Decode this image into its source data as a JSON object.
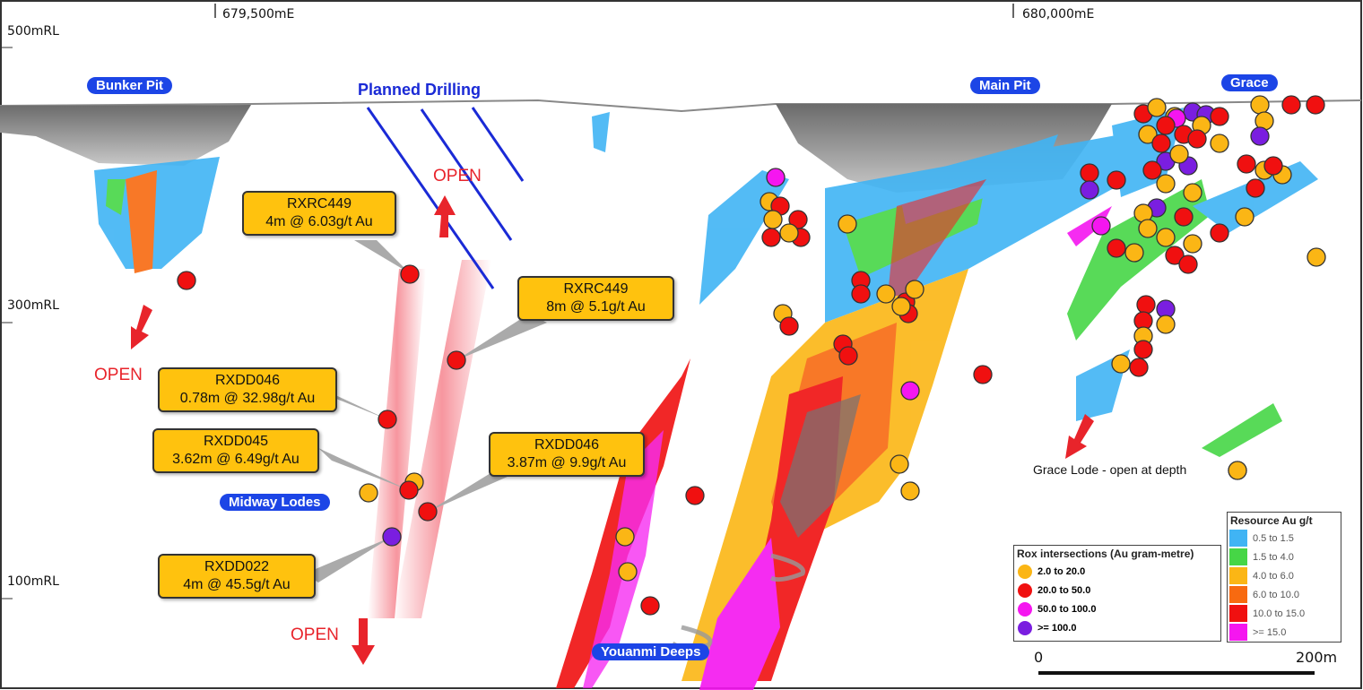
{
  "axes": {
    "easting_labels": [
      "679,500mE",
      "680,000mE"
    ],
    "rl_labels": [
      "500mRL",
      "300mRL",
      "100mRL"
    ]
  },
  "places": {
    "bunker_pit": "Bunker Pit",
    "main_pit": "Main Pit",
    "grace": "Grace",
    "midway": "Midway Lodes",
    "deeps": "Youanmi Deeps",
    "planned": "Planned Drilling"
  },
  "annotations": {
    "open": "OPEN",
    "grace_lode": "Grace Lode - open at depth"
  },
  "callouts": [
    {
      "hole": "RXRC449",
      "result": "4m @ 6.03g/t Au"
    },
    {
      "hole": "RXRC449",
      "result": "8m @ 5.1g/t Au"
    },
    {
      "hole": "RXDD046",
      "result": "0.78m @ 32.98g/t Au"
    },
    {
      "hole": "RXDD045",
      "result": "3.62m @ 6.49g/t Au"
    },
    {
      "hole": "RXDD046",
      "result": "3.87m @ 9.9g/t Au"
    },
    {
      "hole": "RXDD022",
      "result": "4m @ 45.5g/t Au"
    }
  ],
  "legend_intersections": {
    "title": "Rox intersections (Au gram-metre)",
    "items": [
      {
        "label": "2.0 to 20.0",
        "color": "#fbb615"
      },
      {
        "label": "20.0 to 50.0",
        "color": "#f01010"
      },
      {
        "label": "50.0 to 100.0",
        "color": "#f516f0"
      },
      {
        "label": ">= 100.0",
        "color": "#7a1ee0"
      }
    ]
  },
  "legend_resource": {
    "title": "Resource Au g/t",
    "items": [
      {
        "label": "0.5 to 1.5",
        "color": "#40b4f4"
      },
      {
        "label": "1.5 to 4.0",
        "color": "#46d646"
      },
      {
        "label": "4.0 to 6.0",
        "color": "#fbb615"
      },
      {
        "label": "6.0 to 10.0",
        "color": "#f86a10"
      },
      {
        "label": "10.0 to 15.0",
        "color": "#f01010"
      },
      {
        "label": ">= 15.0",
        "color": "#f516f0"
      }
    ]
  },
  "scale": {
    "start": "0",
    "end": "200m"
  }
}
